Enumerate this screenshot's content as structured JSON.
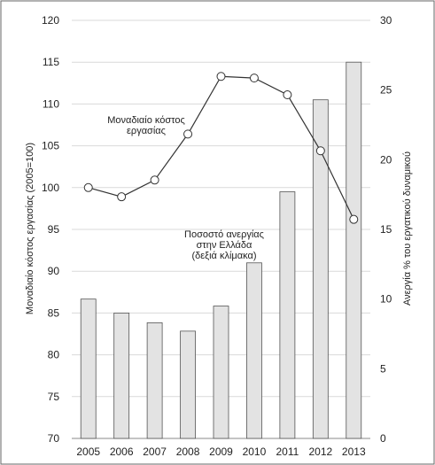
{
  "chart_data": {
    "type": "bar+line",
    "categories": [
      "2005",
      "2006",
      "2007",
      "2008",
      "2009",
      "2010",
      "2011",
      "2012",
      "2013"
    ],
    "left_axis": {
      "label": "Μοναδιαίο κόστος εργασίας (2005=100)",
      "lim": [
        70,
        120
      ],
      "ticks": [
        "70",
        "75",
        "80",
        "85",
        "90",
        "95",
        "100",
        "105",
        "110",
        "115",
        "120"
      ]
    },
    "right_axis": {
      "label": "Ανεργία % του εργατικού δυναμικού",
      "lim": [
        0,
        30
      ],
      "ticks": [
        "0",
        "5",
        "10",
        "15",
        "20",
        "25",
        "30"
      ]
    },
    "series": [
      {
        "name": "Ποσοστό ανεργίας στην Ελλάδα (δεξιά κλίμακα)",
        "type": "bar",
        "axis": "right",
        "values": [
          10,
          9,
          8.3,
          7.7,
          9.5,
          12.6,
          17.7,
          24.3,
          27.0
        ]
      },
      {
        "name": "Μοναδιαίο κόστος εργασίας",
        "type": "line",
        "axis": "left",
        "values": [
          100.0,
          98.9,
          100.9,
          106.4,
          113.3,
          113.1,
          111.1,
          104.4,
          96.2
        ]
      }
    ],
    "annotations": [
      {
        "lines": [
          "Μοναδιαίο κόστος",
          "εργασίας"
        ],
        "near": "line"
      },
      {
        "lines": [
          "Ποσοστό ανεργίας",
          "στην Ελλάδα",
          "(δεξιά κλίμακα)"
        ],
        "near": "bars"
      }
    ],
    "grid": true,
    "colors": {
      "bar_fill": "#e3e3e3",
      "bar_stroke": "#555555",
      "line": "#333333",
      "marker_fill": "#ffffff",
      "grid": "#d9d9d9"
    }
  }
}
